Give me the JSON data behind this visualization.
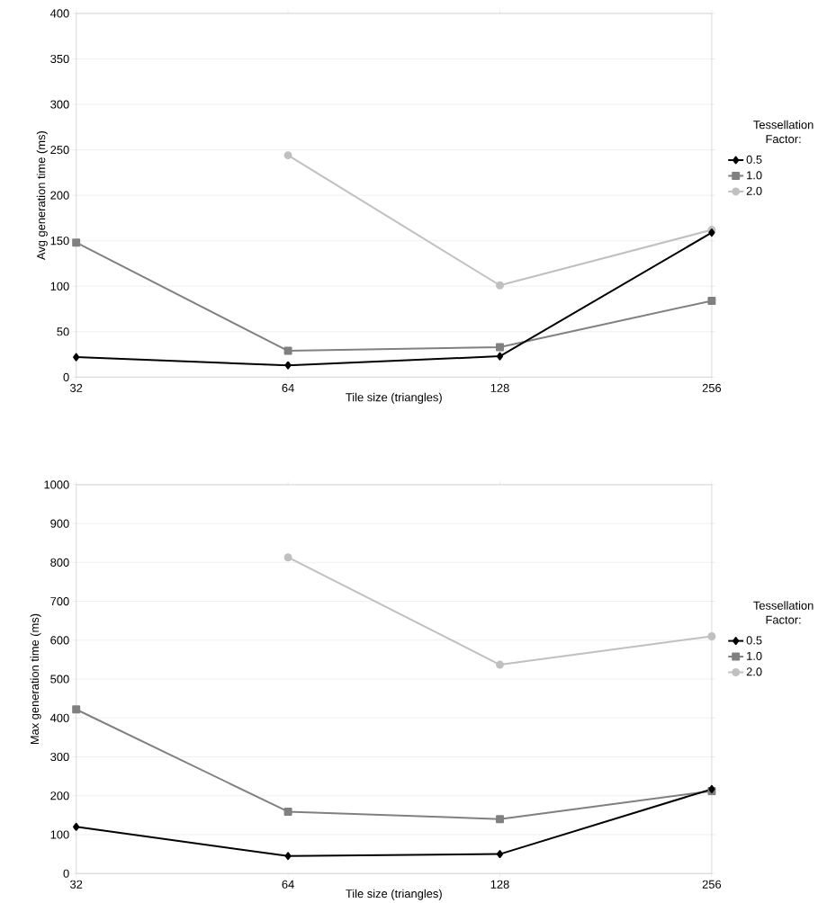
{
  "chart_data": [
    {
      "type": "line",
      "xlabel": "Tile size (triangles)",
      "ylabel": "Avg generation time (ms)",
      "legend_title": "Tessellation Factor:",
      "categories": [
        "32",
        "64",
        "128",
        "256"
      ],
      "ylim": [
        0,
        400
      ],
      "yticks": [
        0,
        50,
        100,
        150,
        200,
        250,
        300,
        350,
        400
      ],
      "grid": "y",
      "legend": "right",
      "line_style": "solid",
      "series": [
        {
          "name": "0.5",
          "color": "#000000",
          "marker": "diamond",
          "values": [
            22,
            13,
            23,
            159
          ]
        },
        {
          "name": "1.0",
          "color": "#808080",
          "marker": "square",
          "values": [
            148,
            29,
            33,
            84
          ]
        },
        {
          "name": "2.0",
          "color": "#c0c0c0",
          "marker": "circle",
          "values": [
            null,
            244,
            101,
            162
          ]
        }
      ]
    },
    {
      "type": "line",
      "xlabel": "Tile size (triangles)",
      "ylabel": "Max generation time (ms)",
      "legend_title": "Tessellation Factor:",
      "categories": [
        "32",
        "64",
        "128",
        "256"
      ],
      "ylim": [
        0,
        1000
      ],
      "yticks": [
        0,
        100,
        200,
        300,
        400,
        500,
        600,
        700,
        800,
        900,
        1000
      ],
      "grid": "y",
      "legend": "right",
      "line_style": "solid",
      "series": [
        {
          "name": "0.5",
          "color": "#000000",
          "marker": "diamond",
          "values": [
            120,
            45,
            50,
            217
          ]
        },
        {
          "name": "1.0",
          "color": "#808080",
          "marker": "square",
          "values": [
            422,
            159,
            140,
            212
          ]
        },
        {
          "name": "2.0",
          "color": "#c0c0c0",
          "marker": "circle",
          "values": [
            null,
            813,
            537,
            610
          ]
        }
      ]
    }
  ]
}
